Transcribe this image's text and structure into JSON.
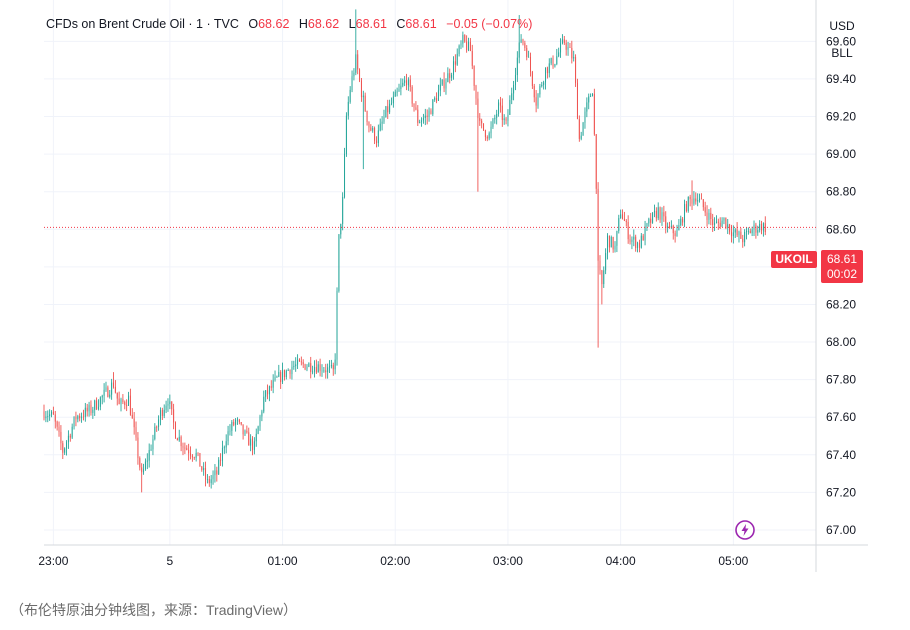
{
  "header": {
    "title": "CFDs on Brent Crude Oil · 1 · TVC",
    "open_label": "O",
    "open": "68.62",
    "high_label": "H",
    "high": "68.62",
    "low_label": "L",
    "low": "68.61",
    "close_label": "C",
    "close": "68.61",
    "change": "−0.05 (−0.07%)"
  },
  "scale": {
    "currency": "USD",
    "unit": "BLL"
  },
  "price_tag": {
    "ticker": "UKOIL",
    "price": "68.61",
    "countdown": "00:02"
  },
  "caption": "（布伦特原油分钟线图，来源：TradingView）",
  "colors": {
    "up": "#26a69a",
    "down": "#ef5350",
    "last_price_line": "#f23645",
    "icon": "#9c27b0"
  },
  "icons": {
    "live": "lightning-icon"
  },
  "chart_data": {
    "type": "candlestick",
    "title": "CFDs on Brent Crude Oil · 1 · TVC",
    "ylim": [
      66.92,
      69.82
    ],
    "y_ticks": [
      67.0,
      67.2,
      67.4,
      67.6,
      67.8,
      68.0,
      68.2,
      68.4,
      68.6,
      68.8,
      69.0,
      69.2,
      69.4,
      69.6
    ],
    "x_range": [
      "22:53",
      "05:44"
    ],
    "x_ticks": [
      {
        "time": "22:58",
        "label": "23:00"
      },
      {
        "time": "00:00",
        "label": "5"
      },
      {
        "time": "01:00",
        "label": "01:00"
      },
      {
        "time": "02:00",
        "label": "02:00"
      },
      {
        "time": "03:00",
        "label": "03:00"
      },
      {
        "time": "04:00",
        "label": "04:00"
      },
      {
        "time": "05:00",
        "label": "05:00"
      }
    ],
    "last_price": 68.61,
    "grid": true,
    "series_path": [
      [
        "22:53",
        67.63
      ],
      [
        "22:58",
        67.6
      ],
      [
        "23:03",
        67.42
      ],
      [
        "23:10",
        67.6
      ],
      [
        "23:18",
        67.64
      ],
      [
        "23:26",
        67.73
      ],
      [
        "23:30",
        67.78
      ],
      [
        "23:33",
        67.66
      ],
      [
        "23:38",
        67.7
      ],
      [
        "23:45",
        67.28
      ],
      [
        "23:50",
        67.45
      ],
      [
        "23:55",
        67.62
      ],
      [
        "23:59",
        67.7
      ],
      [
        "00:03",
        67.52
      ],
      [
        "00:08",
        67.44
      ],
      [
        "00:14",
        67.4
      ],
      [
        "00:20",
        67.25
      ],
      [
        "00:25",
        67.3
      ],
      [
        "00:30",
        67.5
      ],
      [
        "00:35",
        67.58
      ],
      [
        "00:40",
        67.5
      ],
      [
        "00:45",
        67.44
      ],
      [
        "00:50",
        67.7
      ],
      [
        "00:57",
        67.8
      ],
      [
        "01:05",
        67.87
      ],
      [
        "01:12",
        67.88
      ],
      [
        "01:20",
        67.87
      ],
      [
        "01:27",
        67.84
      ],
      [
        "01:28",
        67.93
      ],
      [
        "01:29",
        68.25
      ],
      [
        "01:30",
        68.55
      ],
      [
        "01:32",
        68.75
      ],
      [
        "01:34",
        69.2
      ],
      [
        "01:36",
        69.35
      ],
      [
        "01:39",
        69.5
      ],
      [
        "01:42",
        69.33
      ],
      [
        "01:46",
        69.15
      ],
      [
        "01:50",
        69.08
      ],
      [
        "01:55",
        69.22
      ],
      [
        "02:00",
        69.3
      ],
      [
        "02:06",
        69.4
      ],
      [
        "02:12",
        69.18
      ],
      [
        "02:17",
        69.2
      ],
      [
        "02:23",
        69.33
      ],
      [
        "02:30",
        69.45
      ],
      [
        "02:36",
        69.6
      ],
      [
        "02:40",
        69.55
      ],
      [
        "02:43",
        69.3
      ],
      [
        "02:45",
        69.15
      ],
      [
        "02:50",
        69.1
      ],
      [
        "02:55",
        69.25
      ],
      [
        "02:59",
        69.15
      ],
      [
        "03:03",
        69.4
      ],
      [
        "03:07",
        69.62
      ],
      [
        "03:10",
        69.55
      ],
      [
        "03:15",
        69.28
      ],
      [
        "03:20",
        69.45
      ],
      [
        "03:25",
        69.5
      ],
      [
        "03:30",
        69.6
      ],
      [
        "03:35",
        69.5
      ],
      [
        "03:38",
        69.08
      ],
      [
        "03:42",
        69.25
      ],
      [
        "03:45",
        69.35
      ],
      [
        "03:47",
        68.85
      ],
      [
        "03:48",
        68.4
      ],
      [
        "03:50",
        68.3
      ],
      [
        "03:53",
        68.55
      ],
      [
        "03:57",
        68.5
      ],
      [
        "04:00",
        68.7
      ],
      [
        "04:05",
        68.55
      ],
      [
        "04:10",
        68.52
      ],
      [
        "04:15",
        68.63
      ],
      [
        "04:20",
        68.7
      ],
      [
        "04:25",
        68.6
      ],
      [
        "04:30",
        68.58
      ],
      [
        "04:35",
        68.73
      ],
      [
        "04:40",
        68.78
      ],
      [
        "04:45",
        68.7
      ],
      [
        "04:50",
        68.62
      ],
      [
        "04:55",
        68.65
      ],
      [
        "05:00",
        68.58
      ],
      [
        "05:05",
        68.55
      ],
      [
        "05:10",
        68.6
      ],
      [
        "05:15",
        68.62
      ],
      [
        "05:17",
        68.61
      ]
    ],
    "spikes": [
      {
        "time": "23:45",
        "low": 67.2
      },
      {
        "time": "23:30",
        "high": 67.84
      },
      {
        "time": "01:39",
        "high": 69.77
      },
      {
        "time": "01:43",
        "low": 68.92
      },
      {
        "time": "02:44",
        "low": 68.8
      },
      {
        "time": "03:06",
        "high": 69.74
      },
      {
        "time": "03:48",
        "low": 67.97
      },
      {
        "time": "03:50",
        "low": 68.2
      },
      {
        "time": "04:38",
        "high": 68.86
      }
    ]
  }
}
